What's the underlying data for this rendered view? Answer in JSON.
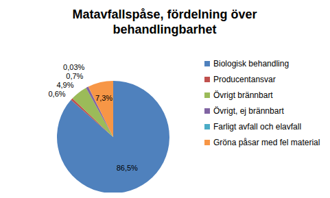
{
  "chart_data": {
    "type": "pie",
    "title": "Matavfallspåse, fördelning över behandlingbarhet",
    "categories": [
      "Biologisk behandling",
      "Producentansvar",
      "Övrigt brännbart",
      "Övrigt, ej brännbart",
      "Farligt avfall och elavfall",
      "Gröna påsar med fel material"
    ],
    "values": [
      86.5,
      0.6,
      4.9,
      0.7,
      0.03,
      7.3
    ],
    "value_labels": [
      "86,5%",
      "0,6%",
      "4,9%",
      "0,7%",
      "0,03%",
      "7,3%"
    ],
    "colors": [
      "#4F81BD",
      "#C0504D",
      "#9BBB59",
      "#8064A2",
      "#4BACC6",
      "#F79646"
    ],
    "data_labels": true,
    "legend": "right"
  }
}
